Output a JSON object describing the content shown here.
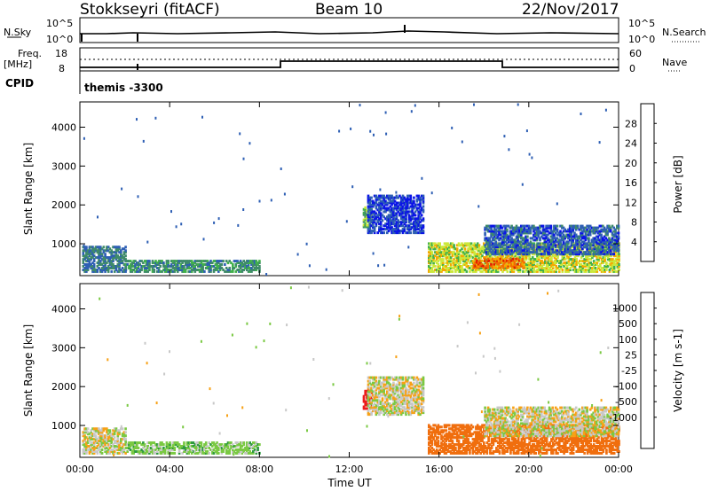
{
  "header": {
    "station": "Stokkseyri (fitACF)",
    "beam": "Beam 10",
    "date": "22/Nov/2017"
  },
  "panels": {
    "nsky_label": "N.Sky",
    "nsky_ticks": [
      "10^5",
      "10^0"
    ],
    "nsearch_label": "N.Search",
    "nsearch_ticks": [
      "10^5",
      "10^0"
    ],
    "freq_label_1": "Freq.",
    "freq_label_2": "[MHz]",
    "freq_ticks": [
      "18",
      "8"
    ],
    "nave_label": "Nave",
    "nave_ticks": [
      "60",
      "0"
    ],
    "cpid_label": "CPID",
    "cpid_value": "themis -3300"
  },
  "colors": {
    "power_scale": [
      "#0a14e6",
      "#2e5fb4",
      "#3f8a6a",
      "#41b04b",
      "#cbe83c",
      "#f5a800",
      "#f46a00",
      "#e21b00"
    ],
    "velocity_scale": [
      "#ec1c1c",
      "#f06e0e",
      "#f7a116",
      "#f8cc35",
      "#c8c8c8",
      "#c8c8c8",
      "#7ac943",
      "#2e9a3f",
      "#3a6ea5",
      "#1a2fbf"
    ]
  },
  "chart_data": [
    {
      "type": "heatmap",
      "title": "",
      "ylabel": "Slant Range [km]",
      "xlabel": "",
      "x_ticks": [
        "00:00",
        "04:00",
        "08:00",
        "12:00",
        "16:00",
        "20:00",
        "00:00"
      ],
      "y_ticks": [
        "1000",
        "2000",
        "3000",
        "4000"
      ],
      "ylim": [
        180,
        4650
      ],
      "xlim_hours": [
        0,
        24
      ],
      "colorbar_label": "Power [dB]",
      "colorbar_ticks": [
        "4",
        "8",
        "12",
        "16",
        "20",
        "24",
        "28"
      ],
      "regions": [
        {
          "t0": 0.1,
          "t1": 2.0,
          "r0": 250,
          "r1": 900,
          "mean": 8
        },
        {
          "t0": 2.0,
          "t1": 8.0,
          "r0": 250,
          "r1": 550,
          "mean": 10
        },
        {
          "t0": 12.6,
          "t1": 13.0,
          "r0": 1400,
          "r1": 1900,
          "mean": 14
        },
        {
          "t0": 12.8,
          "t1": 15.3,
          "r0": 1250,
          "r1": 2200,
          "mean": 4
        },
        {
          "t0": 15.5,
          "t1": 24.0,
          "r0": 250,
          "r1": 1000,
          "mean": 18
        },
        {
          "t0": 17.5,
          "t1": 19.8,
          "r0": 350,
          "r1": 600,
          "mean": 26
        },
        {
          "t0": 18.0,
          "t1": 24.0,
          "r0": 700,
          "r1": 1450,
          "mean": 6
        }
      ]
    },
    {
      "type": "heatmap",
      "title": "",
      "ylabel": "Slant Range [km]",
      "xlabel": "Time UT",
      "x_ticks": [
        "00:00",
        "04:00",
        "08:00",
        "12:00",
        "16:00",
        "20:00",
        "00:00"
      ],
      "y_ticks": [
        "1000",
        "2000",
        "3000",
        "4000"
      ],
      "ylim": [
        180,
        4650
      ],
      "xlim_hours": [
        0,
        24
      ],
      "colorbar_label": "Velocity [m s-1]",
      "colorbar_ticks": [
        "1000",
        "500",
        "100",
        "25",
        "-25",
        "-100",
        "-500",
        "-1000"
      ],
      "regions": [
        {
          "t0": 0.1,
          "t1": 2.0,
          "r0": 250,
          "r1": 900,
          "mean": 0
        },
        {
          "t0": 2.0,
          "t1": 8.0,
          "r0": 250,
          "r1": 550,
          "mean": 60
        },
        {
          "t0": 12.6,
          "t1": 13.0,
          "r0": 1400,
          "r1": 1900,
          "mean": -700
        },
        {
          "t0": 12.8,
          "t1": 15.3,
          "r0": 1250,
          "r1": 2200,
          "mean": 0
        },
        {
          "t0": 15.5,
          "t1": 24.0,
          "r0": 250,
          "r1": 1000,
          "mean": -300
        },
        {
          "t0": 18.0,
          "t1": 24.0,
          "r0": 700,
          "r1": 1450,
          "mean": 0
        }
      ]
    }
  ]
}
